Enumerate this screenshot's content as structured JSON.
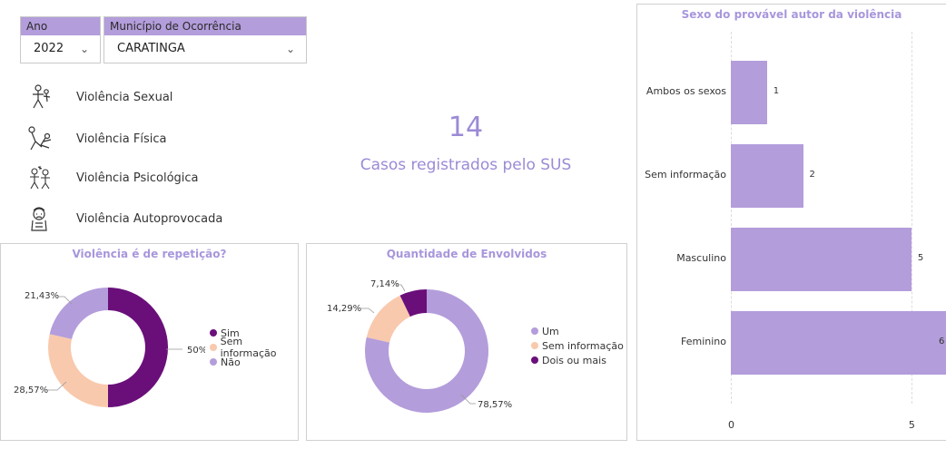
{
  "filters": {
    "year": {
      "header": "Ano",
      "value": "2022"
    },
    "municipality": {
      "header": "Município de Ocorrência",
      "value": "CARATINGA"
    }
  },
  "violence_types": [
    {
      "label": "Violência Sexual",
      "icon": "sexual-violence-icon"
    },
    {
      "label": "Violência Física",
      "icon": "physical-violence-icon"
    },
    {
      "label": "Violência Psicológica",
      "icon": "psychological-violence-icon"
    },
    {
      "label": "Violência Autoprovocada",
      "icon": "self-harm-icon"
    }
  ],
  "kpi": {
    "value": "14",
    "label": "Casos registrados pelo SUS"
  },
  "colors": {
    "dark_purple": "#6a0f7a",
    "peach": "#f9c9ad",
    "lavender": "#b39ddb"
  },
  "chart_data": [
    {
      "type": "pie",
      "title": "Violência é de repetição?",
      "categories": [
        "Sim",
        "Sem informação",
        "Não"
      ],
      "values": [
        50,
        28.57,
        21.43
      ],
      "data_labels": [
        "50%",
        "28,57%",
        "21,43%"
      ],
      "colors": [
        "#6a0f7a",
        "#f9c9ad",
        "#b39ddb"
      ],
      "legend": "right"
    },
    {
      "type": "pie",
      "title": "Quantidade de Envolvidos",
      "categories": [
        "Um",
        "Sem informação",
        "Dois ou mais"
      ],
      "values": [
        78.57,
        14.29,
        7.14
      ],
      "data_labels": [
        "78,57%",
        "14,29%",
        "7,14%"
      ],
      "colors": [
        "#b39ddb",
        "#f9c9ad",
        "#6a0f7a"
      ],
      "legend": "right"
    },
    {
      "type": "bar",
      "orientation": "horizontal",
      "title": "Sexo do provável autor da violência",
      "categories": [
        "Ambos os sexos",
        "Sem informação",
        "Masculino",
        "Feminino"
      ],
      "values": [
        1,
        2,
        5,
        6
      ],
      "x_ticks": [
        "0",
        "5"
      ],
      "xlim": [
        0,
        6
      ],
      "color": "#b39ddb",
      "grid": true
    }
  ]
}
